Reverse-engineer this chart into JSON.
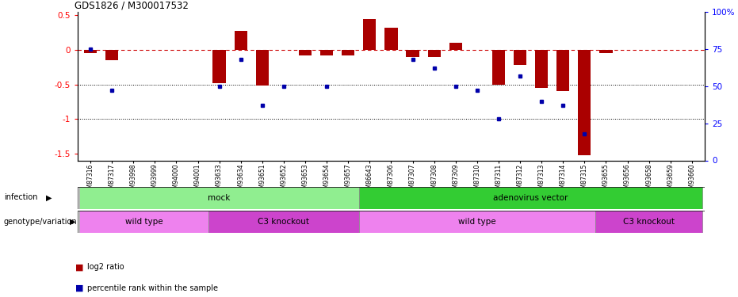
{
  "title": "GDS1826 / M300017532",
  "samples": [
    "GSM87316",
    "GSM87317",
    "GSM93998",
    "GSM93999",
    "GSM94000",
    "GSM94001",
    "GSM93633",
    "GSM93634",
    "GSM93651",
    "GSM93652",
    "GSM93653",
    "GSM93654",
    "GSM93657",
    "GSM86643",
    "GSM87306",
    "GSM87307",
    "GSM87308",
    "GSM87309",
    "GSM87310",
    "GSM87311",
    "GSM87312",
    "GSM87313",
    "GSM87314",
    "GSM87315",
    "GSM93655",
    "GSM93656",
    "GSM93658",
    "GSM93659",
    "GSM93660"
  ],
  "log2_ratio": [
    -0.05,
    -0.15,
    0.0,
    0.0,
    0.0,
    0.0,
    -0.48,
    0.27,
    -0.52,
    0.0,
    -0.08,
    -0.08,
    -0.08,
    0.45,
    0.32,
    -0.1,
    -0.1,
    0.1,
    0.0,
    -0.5,
    -0.22,
    -0.55,
    -0.6,
    -1.52,
    -0.05,
    0.0,
    0.0,
    0.0,
    0.0
  ],
  "percentile": [
    75,
    47,
    0,
    0,
    0,
    0,
    50,
    68,
    37,
    50,
    0,
    50,
    0,
    0,
    0,
    68,
    62,
    50,
    47,
    28,
    57,
    40,
    37,
    18,
    0,
    0,
    0,
    0,
    0
  ],
  "infection_groups": [
    {
      "label": "mock",
      "start": 0,
      "end": 13,
      "color": "#90EE90"
    },
    {
      "label": "adenovirus vector",
      "start": 13,
      "end": 29,
      "color": "#33CC33"
    }
  ],
  "genotype_groups": [
    {
      "label": "wild type",
      "start": 0,
      "end": 6,
      "color": "#EE82EE"
    },
    {
      "label": "C3 knockout",
      "start": 6,
      "end": 13,
      "color": "#CC44CC"
    },
    {
      "label": "wild type",
      "start": 13,
      "end": 24,
      "color": "#EE82EE"
    },
    {
      "label": "C3 knockout",
      "start": 24,
      "end": 29,
      "color": "#CC44CC"
    }
  ],
  "bar_color": "#AA0000",
  "dot_color": "#0000AA",
  "dashed_line_color": "#CC0000",
  "ylim_left": [
    -1.6,
    0.55
  ],
  "ylim_right": [
    0,
    100
  ],
  "yticks_left": [
    0.5,
    0.0,
    -0.5,
    -1.0,
    -1.5
  ],
  "yticks_right": [
    100,
    75,
    50,
    25,
    0
  ],
  "bg_color": "#ffffff"
}
